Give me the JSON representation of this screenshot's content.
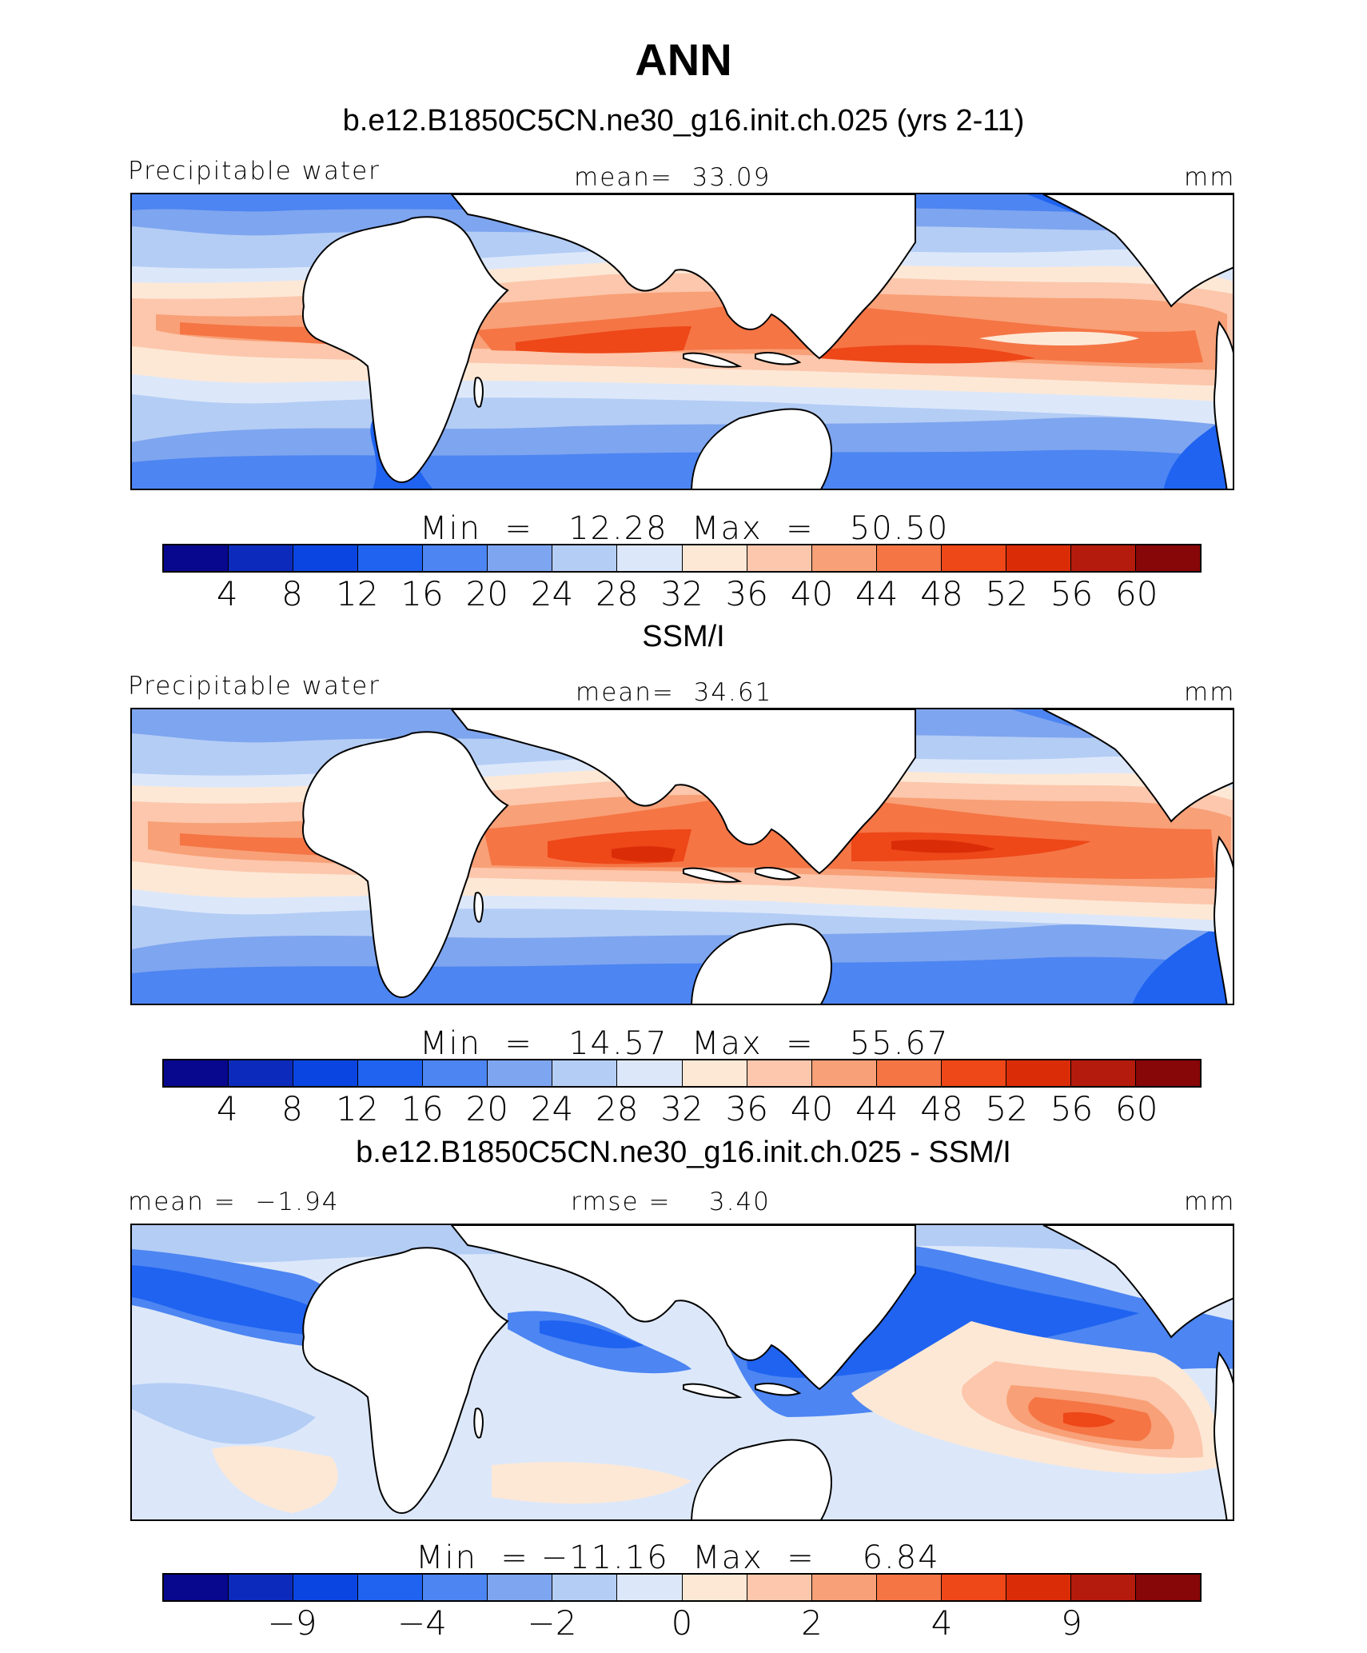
{
  "title": "ANN",
  "colormap": [
    "#08088e",
    "#0c2bbd",
    "#0b45e1",
    "#1f63f0",
    "#4d85f2",
    "#7ea5ef",
    "#b4cdf5",
    "#dce8fa",
    "#fde8d6",
    "#fcc7ac",
    "#f8a077",
    "#f57545",
    "#ee4718",
    "#db2c08",
    "#b41b0c",
    "#870607"
  ],
  "panels": [
    {
      "case_title": "b.e12.B1850C5CN.ne30_g16.init.ch.025 (yrs 2-11)",
      "left_label": "Precipitable water",
      "center_label": "mean=  33.09",
      "units": "mm",
      "minmax": "Min  =   12.28  Max  =   50.50",
      "ticks": [
        "4",
        "8",
        "12",
        "16",
        "20",
        "24",
        "28",
        "32",
        "36",
        "40",
        "44",
        "48",
        "52",
        "56",
        "60"
      ]
    },
    {
      "case_title": "SSM/I",
      "left_label": "Precipitable water",
      "center_label": "mean=  34.61",
      "units": "mm",
      "minmax": "Min  =   14.57  Max  =   55.67",
      "ticks": [
        "4",
        "8",
        "12",
        "16",
        "20",
        "24",
        "28",
        "32",
        "36",
        "40",
        "44",
        "48",
        "52",
        "56",
        "60"
      ]
    },
    {
      "case_title": "b.e12.B1850C5CN.ne30_g16.init.ch.025 - SSM/I",
      "left_label": "mean =  −1.94",
      "center_label": "rmse =    3.40",
      "units": "mm",
      "minmax": "Min  = −11.16  Max  =    6.84",
      "ticks": [
        "−9",
        "−4",
        "−2",
        "0",
        "2",
        "4",
        "9"
      ]
    }
  ]
}
